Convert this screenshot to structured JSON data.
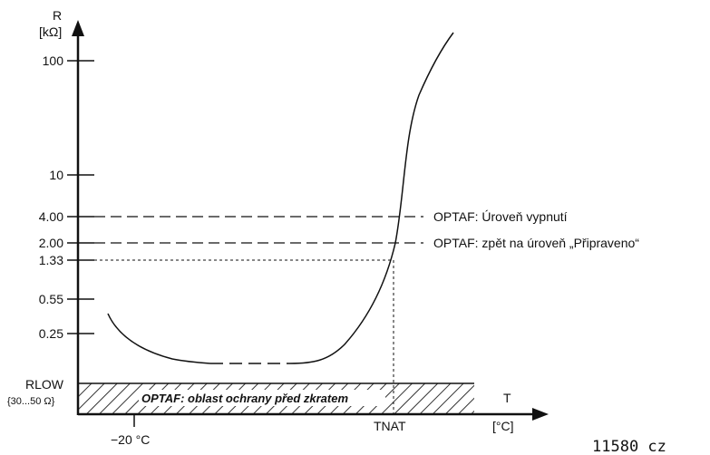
{
  "chart_data": {
    "type": "line",
    "y_axis": {
      "label_line1": "R",
      "label_line2": "[kΩ]",
      "scale": "log"
    },
    "x_axis": {
      "label_line1": "T",
      "label_line2": "[°C]"
    },
    "y_ticks": [
      {
        "label": "100",
        "value": 100
      },
      {
        "label": "10",
        "value": 10
      },
      {
        "label": "4.00",
        "value": 4.0
      },
      {
        "label": "2.00",
        "value": 2.0
      },
      {
        "label": "1.33",
        "value": 1.33
      },
      {
        "label": "0.55",
        "value": 0.55
      },
      {
        "label": "0.25",
        "value": 0.25
      }
    ],
    "rlow": {
      "label": "RLOW",
      "range": "{30...50 Ω}"
    },
    "x_ticks": [
      {
        "label": "−20 °C"
      },
      {
        "label": "TNAT"
      }
    ],
    "thresholds": [
      {
        "value": 4.0,
        "label": "OPTAF: Úroveň vypnutí"
      },
      {
        "value": 2.0,
        "label": "OPTAF: zpět na úroveň „Připraveno“"
      }
    ],
    "short_circuit_zone": {
      "label": "OPTAF: oblast ochrany před zkratem"
    },
    "curve_description": "PTC thermistor resistance vs temperature",
    "footer_code": "11580 cz"
  }
}
